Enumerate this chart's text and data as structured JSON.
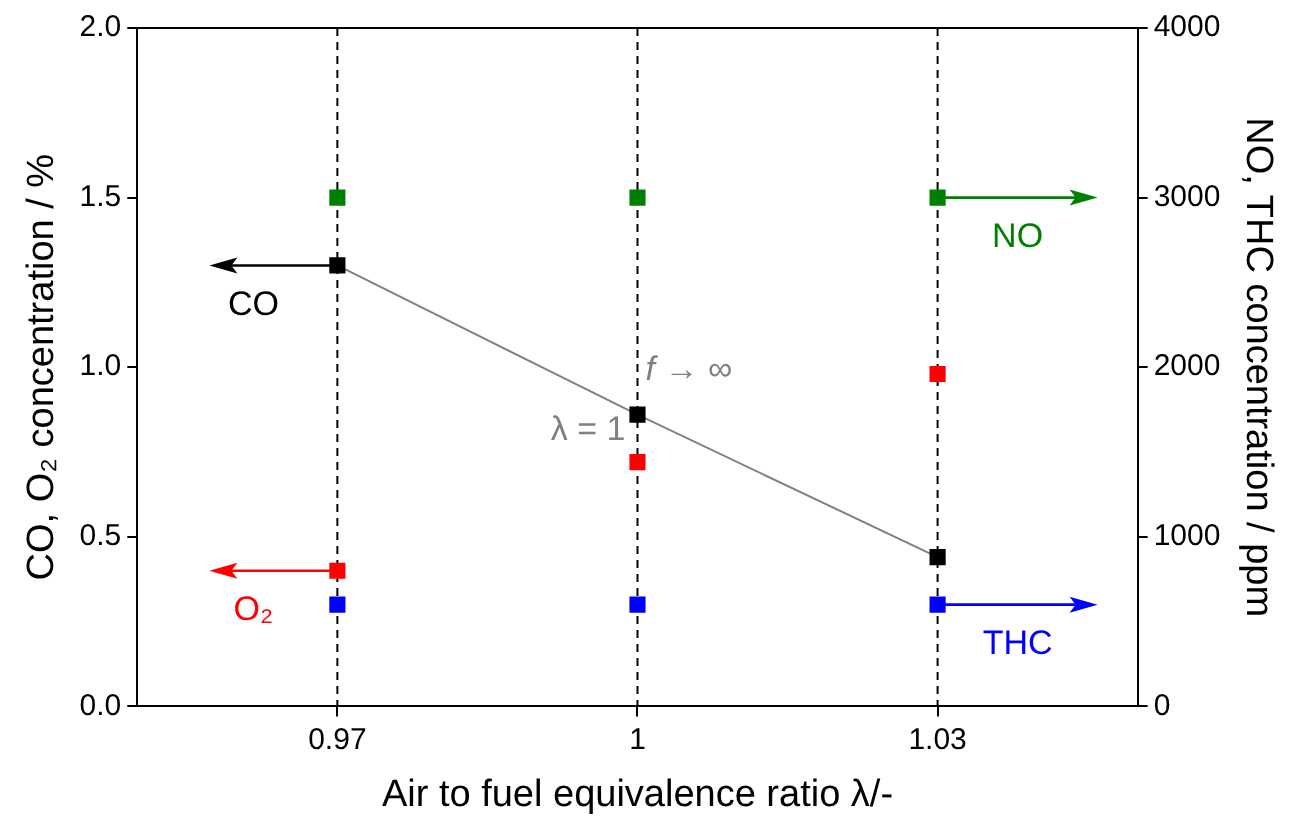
{
  "chart_data": {
    "type": "scatter",
    "xlabel": "Air to fuel equivalence ratio λ/-",
    "ylabel": "CO, O₂ concentration / %",
    "y2label": "NO, THC concentration / ppm",
    "x": [
      0.97,
      1,
      1.03
    ],
    "series": [
      {
        "name": "CO",
        "color": "#000000",
        "values": [
          1.3,
          0.86,
          0.44
        ]
      },
      {
        "name": "O₂",
        "color": "#ff0000",
        "values": [
          0.4,
          0.72,
          0.98
        ]
      },
      {
        "name": "NO",
        "color": "#008000",
        "values": [
          3000,
          3000,
          3000
        ],
        "axis": "y2"
      },
      {
        "name": "THC",
        "color": "#0000ff",
        "values": [
          600,
          600,
          600
        ],
        "axis": "y2"
      },
      {
        "type": "line",
        "color": "#808080",
        "marker": "none",
        "values": [
          1.3,
          0.86,
          0.44
        ]
      }
    ],
    "xlim": [
      0.95,
      1.05
    ],
    "xticks": [
      0.97,
      1,
      1.03
    ],
    "ylim": [
      0,
      2
    ],
    "yticks": [
      {
        "value": 0,
        "label": "0.0"
      },
      0.5,
      {
        "value": 1,
        "label": "1.0"
      },
      1.5,
      {
        "value": 2,
        "label": "2.0"
      }
    ],
    "y2lim": [
      0,
      4000
    ],
    "y2ticks": [
      0,
      1000,
      2000,
      3000,
      4000
    ],
    "ref_lines": [
      {
        "axis": "x",
        "value": 0.97,
        "color": "#000000",
        "line_style": "dashed"
      },
      {
        "axis": "x",
        "value": 1,
        "color": "#000000",
        "line_style": "dashed"
      },
      {
        "axis": "x",
        "value": 1.03,
        "color": "#000000",
        "line_style": "dashed"
      }
    ],
    "annotations": [
      {
        "text": "f → ∞",
        "x": 1,
        "y": 0.86
      },
      {
        "text": "λ = 1",
        "x": 1,
        "y": 0.86
      }
    ],
    "marker": "square",
    "grid": false,
    "legend": "center"
  }
}
